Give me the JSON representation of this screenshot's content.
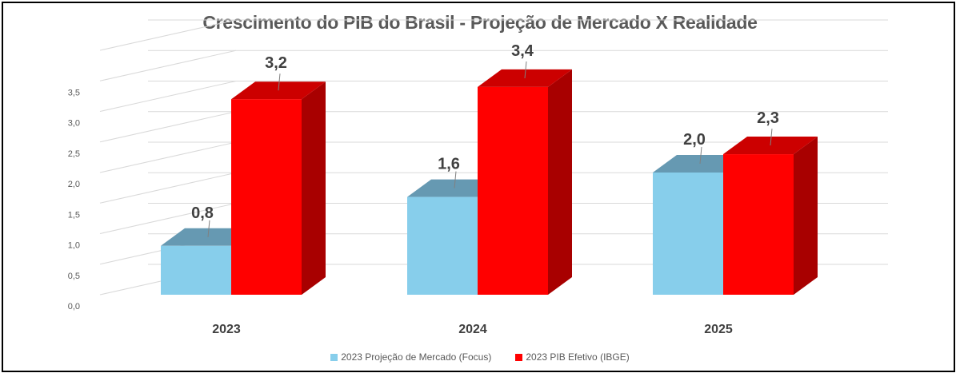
{
  "colors": {
    "series1": "#87CEEB",
    "series2": "#FF0000",
    "grid": "#d9d9d9",
    "text": "#595959",
    "frame": "#000000"
  },
  "chart_data": {
    "type": "bar",
    "title": "Crescimento do PIB do Brasil - Projeção de Mercado X Realidade",
    "categories": [
      "2023",
      "2024",
      "2025"
    ],
    "series": [
      {
        "name": "2023 Projeção de Mercado (Focus)",
        "values": [
          0.8,
          1.6,
          2.0
        ],
        "labels": [
          "0,8",
          "1,6",
          "2,0"
        ],
        "color": "#87CEEB"
      },
      {
        "name": "2023 PIB Efetivo (IBGE)",
        "values": [
          3.2,
          3.4,
          2.3
        ],
        "labels": [
          "3,2",
          "3,4",
          "2,3"
        ],
        "color": "#FF0000"
      }
    ],
    "yticks": [
      "0,0",
      "0,5",
      "1,0",
      "1,5",
      "2,0",
      "2,5",
      "3,0",
      "3,5"
    ],
    "ylim": [
      0,
      4
    ],
    "grid": true,
    "legend": "bottom",
    "style": "3d"
  }
}
